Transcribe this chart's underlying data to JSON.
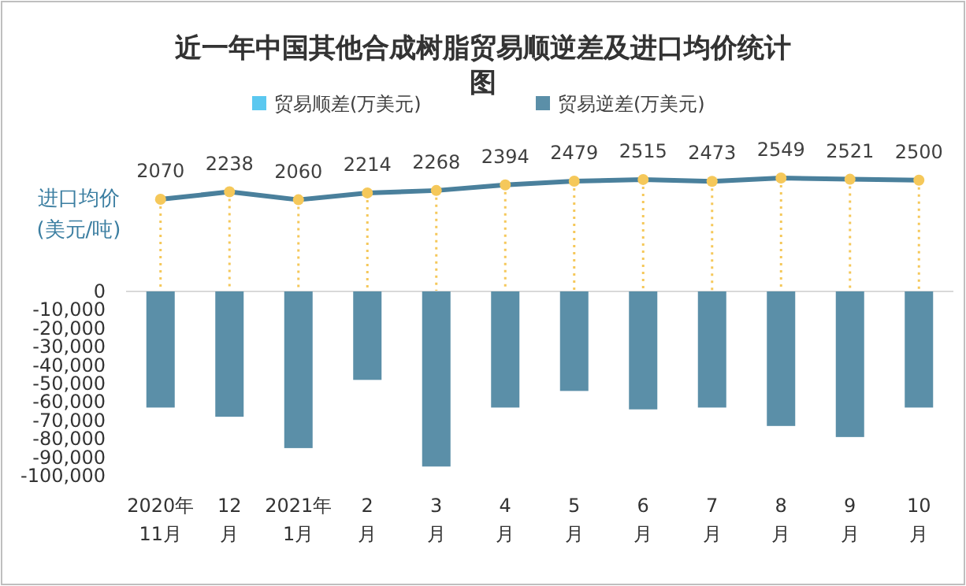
{
  "chart_data": [
    {
      "type": "line",
      "title": "近一年中国其他合成树脂贸易顺逆差及进口均价统计图",
      "ylabel": "进口均价\n(美元/吨)",
      "series": [
        {
          "color": "#4a809c",
          "values": [
            2070,
            2238,
            2060,
            2214,
            2268,
            2394,
            2479,
            2515,
            2473,
            2549,
            2521,
            2500
          ]
        }
      ],
      "marker": "circle",
      "data_labels": true,
      "grid": "x"
    },
    {
      "type": "bar",
      "categories": [
        "2020年\n11月",
        "12\n月",
        "2021年\n1月",
        "2\n月",
        "3\n月",
        "4\n月",
        "5\n月",
        "6\n月",
        "7\n月",
        "8\n月",
        "9\n月",
        "10\n月"
      ],
      "series": [
        {
          "name": "贸易顺差(万美元)",
          "color": "#5bc8f0",
          "values": [
            null,
            null,
            null,
            null,
            null,
            null,
            null,
            null,
            null,
            null,
            null,
            null
          ]
        },
        {
          "name": "贸易逆差(万美元)",
          "color": "#5b8fa8",
          "values": [
            -63000,
            -68000,
            -85000,
            -48000,
            -95000,
            -63000,
            -54000,
            -64000,
            -63000,
            -73000,
            -79000,
            -63000
          ]
        }
      ],
      "ylim": [
        -100000,
        0
      ],
      "yticks": [
        {
          "value": 0,
          "label": "0"
        },
        {
          "value": -10000,
          "label": "-10,000"
        },
        {
          "value": -20000,
          "label": "-20,000"
        },
        {
          "value": -30000,
          "label": "-30,000"
        },
        {
          "value": -40000,
          "label": "-40,000"
        },
        {
          "value": -50000,
          "label": "-50,000"
        },
        {
          "value": -60000,
          "label": "-60,000"
        },
        {
          "value": -70000,
          "label": "-70,000"
        },
        {
          "value": -80000,
          "label": "-80,000"
        },
        {
          "value": -90000,
          "label": "-90,000"
        },
        {
          "value": -100000,
          "label": "-100,000"
        }
      ],
      "legend": "top"
    }
  ]
}
